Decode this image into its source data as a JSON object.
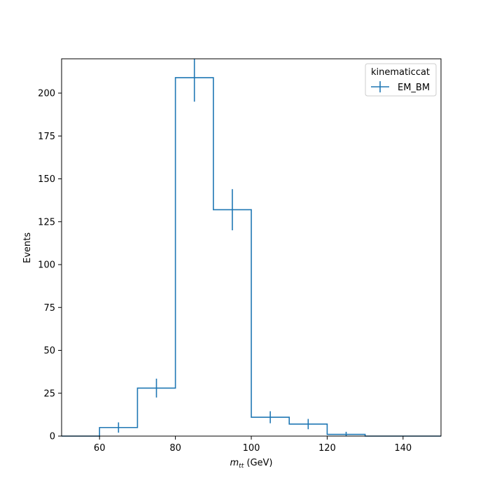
{
  "chart_data": {
    "type": "histogram-step",
    "xlabel_main": "m",
    "xlabel_sub": "tt",
    "xlabel_unit": " (GeV)",
    "ylabel": "Events",
    "xlim": [
      50,
      150
    ],
    "ylim": [
      0,
      220
    ],
    "xticks": [
      60,
      80,
      100,
      120,
      140
    ],
    "yticks": [
      0,
      25,
      50,
      75,
      100,
      125,
      150,
      175,
      200
    ],
    "legend_title": "kinematiccat",
    "legend_placement": "upper-right",
    "series": [
      {
        "name": "EM_BM",
        "color": "#1f77b4",
        "bin_edges": [
          50,
          60,
          70,
          80,
          90,
          100,
          110,
          120,
          130,
          140,
          150
        ],
        "values": [
          0,
          5,
          28,
          209,
          132,
          11,
          7,
          1,
          0,
          0
        ],
        "errors": [
          0,
          3,
          5.5,
          14,
          12,
          3.5,
          3,
          1.5,
          0,
          0
        ]
      }
    ]
  }
}
